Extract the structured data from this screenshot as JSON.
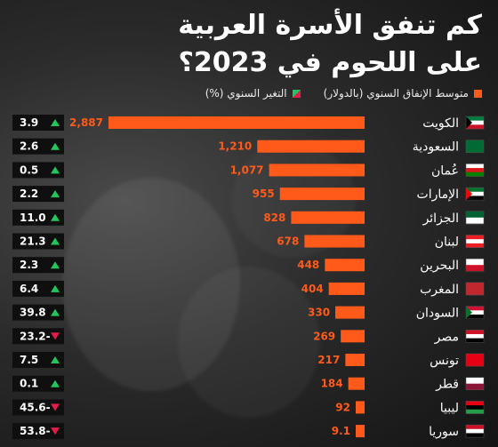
{
  "title_line1": "كم تنفق الأسرة العربية",
  "title_line2": "على اللحوم في 2023؟",
  "legend": {
    "spending": "متوسط الإنفاق السنوي (بالدولار)",
    "change": "التغير السنوي (%)"
  },
  "colors": {
    "bar": "#ff5a1a",
    "up": "#22c55e",
    "down": "#e11d48",
    "change_bg": "#0f0f0f"
  },
  "chart_data": {
    "type": "bar",
    "orientation": "horizontal",
    "categories": [
      "الكويت",
      "السعودية",
      "عُمان",
      "الإمارات",
      "الجزائر",
      "لبنان",
      "البحرين",
      "المغرب",
      "السودان",
      "مصر",
      "تونس",
      "قطر",
      "ليبيا",
      "سوريا"
    ],
    "series": [
      {
        "name": "متوسط الإنفاق السنوي (بالدولار)",
        "values": [
          2887,
          1210,
          1077,
          955,
          828,
          678,
          448,
          404,
          330,
          269,
          217,
          184,
          92,
          9.1
        ]
      },
      {
        "name": "التغير السنوي (%)",
        "values": [
          3.9,
          2.6,
          0.5,
          2.2,
          11.0,
          21.3,
          2.3,
          6.4,
          39.8,
          -23.2,
          7.5,
          0.1,
          -45.6,
          -53.8
        ]
      }
    ],
    "value_labels": [
      "2,887",
      "1,210",
      "1,077",
      "955",
      "828",
      "678",
      "448",
      "404",
      "330",
      "269",
      "217",
      "184",
      "92",
      "9.1"
    ],
    "change_labels": [
      "3.9",
      "2.6",
      "0.5",
      "2.2",
      "11.0",
      "21.3",
      "2.3",
      "6.4",
      "39.8",
      "23.2-",
      "7.5",
      "0.1",
      "45.6-",
      "53.8-"
    ],
    "xlim": [
      0,
      2887
    ]
  },
  "flags": [
    {
      "country": "الكويت",
      "colors": [
        "#007a3d",
        "#ffffff",
        "#ce1126"
      ],
      "hoist": "#000000"
    },
    {
      "country": "السعودية",
      "colors": [
        "#006c35"
      ]
    },
    {
      "country": "عُمان",
      "colors": [
        "#ffffff",
        "#db161b",
        "#008000"
      ]
    },
    {
      "country": "الإمارات",
      "colors": [
        "#00732f",
        "#ffffff",
        "#000000"
      ],
      "hoist": "#ff0000"
    },
    {
      "country": "الجزائر",
      "colors": [
        "#006233",
        "#ffffff"
      ]
    },
    {
      "country": "لبنان",
      "colors": [
        "#ed1c24",
        "#ffffff",
        "#ed1c24"
      ]
    },
    {
      "country": "البحرين",
      "colors": [
        "#ffffff",
        "#ce1126"
      ]
    },
    {
      "country": "المغرب",
      "colors": [
        "#c1272d"
      ]
    },
    {
      "country": "السودان",
      "colors": [
        "#d21034",
        "#ffffff",
        "#000000"
      ],
      "hoist": "#007229"
    },
    {
      "country": "مصر",
      "colors": [
        "#ce1126",
        "#ffffff",
        "#000000"
      ]
    },
    {
      "country": "تونس",
      "colors": [
        "#e70013"
      ]
    },
    {
      "country": "قطر",
      "colors": [
        "#ffffff",
        "#8a1538"
      ]
    },
    {
      "country": "ليبيا",
      "colors": [
        "#e70013",
        "#000000",
        "#239e46"
      ]
    },
    {
      "country": "سوريا",
      "colors": [
        "#ce1126",
        "#ffffff",
        "#000000"
      ]
    }
  ]
}
